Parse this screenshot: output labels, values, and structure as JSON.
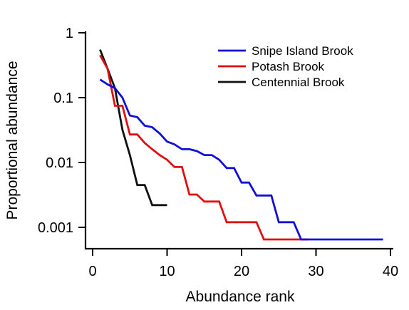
{
  "chart_data": {
    "type": "line",
    "title": "",
    "xlabel": "Abundance rank",
    "ylabel": "Proportional abundance",
    "xlim": [
      0,
      40
    ],
    "ylim": [
      0.0005,
      1
    ],
    "yscale": "log",
    "x_ticks": [
      0,
      10,
      20,
      30,
      40
    ],
    "x_tick_labels": [
      "0",
      "10",
      "20",
      "30",
      "40"
    ],
    "y_ticks": [
      1,
      0.1,
      0.01,
      0.001
    ],
    "y_tick_labels": [
      "1",
      "0.1",
      "0.01",
      "0.001"
    ],
    "grid": false,
    "legend_position": "top-right",
    "series": [
      {
        "name": "Snipe Island Brook",
        "color": "#1010d8",
        "x": [
          1,
          2,
          3,
          4,
          5,
          6,
          7,
          8,
          9,
          10,
          11,
          12,
          13,
          14,
          15,
          16,
          17,
          18,
          19,
          20,
          21,
          22,
          23,
          24,
          25,
          26,
          27,
          28,
          29,
          30,
          31,
          32,
          33,
          34,
          35,
          36,
          37,
          38,
          39
        ],
        "y": [
          0.19,
          0.16,
          0.14,
          0.1,
          0.053,
          0.05,
          0.037,
          0.035,
          0.028,
          0.021,
          0.019,
          0.016,
          0.016,
          0.015,
          0.013,
          0.013,
          0.011,
          0.0082,
          0.0082,
          0.0049,
          0.0049,
          0.0031,
          0.0031,
          0.0031,
          0.0012,
          0.0012,
          0.0012,
          0.00065,
          0.00065,
          0.00065,
          0.00065,
          0.00065,
          0.00065,
          0.00065,
          0.00065,
          0.00065,
          0.00065,
          0.00065,
          0.00065
        ]
      },
      {
        "name": "Potash Brook",
        "color": "#e01010",
        "x": [
          1,
          2,
          3,
          4,
          5,
          6,
          7,
          8,
          9,
          10,
          11,
          12,
          13,
          14,
          15,
          16,
          17,
          18,
          19,
          20,
          21,
          22,
          23,
          24,
          25,
          26,
          27,
          28,
          29
        ],
        "y": [
          0.45,
          0.28,
          0.075,
          0.075,
          0.027,
          0.027,
          0.02,
          0.016,
          0.013,
          0.011,
          0.0085,
          0.0085,
          0.0032,
          0.0032,
          0.0025,
          0.0025,
          0.0025,
          0.0012,
          0.0012,
          0.0012,
          0.0012,
          0.0012,
          0.00065,
          0.00065,
          0.00065,
          0.00065,
          0.00065,
          0.00065,
          0.00065
        ]
      },
      {
        "name": "Centennial Brook",
        "color": "#101010",
        "x": [
          1,
          2,
          3,
          4,
          5,
          6,
          7,
          8,
          9,
          10
        ],
        "y": [
          0.55,
          0.28,
          0.14,
          0.032,
          0.013,
          0.0045,
          0.0045,
          0.0022,
          0.0022,
          0.0022
        ]
      }
    ]
  }
}
